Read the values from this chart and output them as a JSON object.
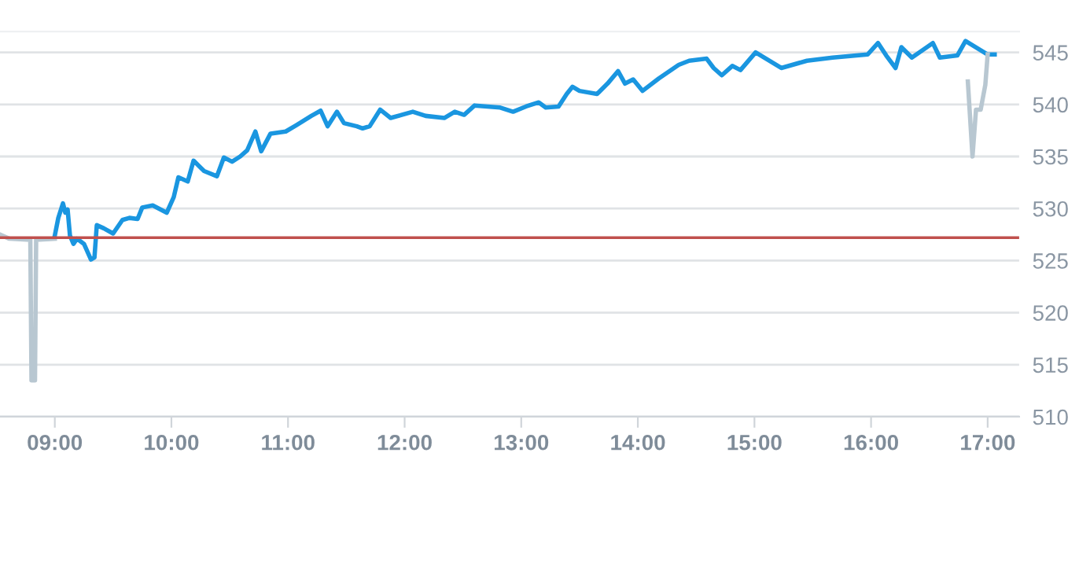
{
  "chart_data": {
    "type": "line",
    "series": [
      {
        "color": "#b8c7d1",
        "x": [
          8.53,
          8.61,
          8.79,
          8.8,
          8.83,
          8.84,
          9.0
        ],
        "values": [
          527.5,
          527.1,
          527.0,
          513.5,
          513.5,
          527.0,
          527.1
        ]
      },
      {
        "color": "#1a96e0",
        "x": [
          9.0,
          9.03,
          9.07,
          9.09,
          9.11,
          9.13,
          9.16,
          9.19,
          9.25,
          9.31,
          9.34,
          9.36,
          9.42,
          9.5,
          9.58,
          9.64,
          9.71,
          9.75,
          9.84,
          9.96,
          10.02,
          10.06,
          10.14,
          10.19,
          10.28,
          10.39,
          10.45,
          10.52,
          10.59,
          10.65,
          10.72,
          10.77,
          10.85,
          10.98,
          11.07,
          11.2,
          11.28,
          11.34,
          11.42,
          11.48,
          11.59,
          11.64,
          11.7,
          11.79,
          11.88,
          12.07,
          12.18,
          12.34,
          12.43,
          12.51,
          12.6,
          12.82,
          12.93,
          13.04,
          13.15,
          13.21,
          13.32,
          13.39,
          13.44,
          13.5,
          13.65,
          13.74,
          13.83,
          13.89,
          13.96,
          14.04,
          14.18,
          14.35,
          14.44,
          14.59,
          14.65,
          14.72,
          14.81,
          14.88,
          15.01,
          15.23,
          15.45,
          15.67,
          15.97,
          16.06,
          16.13,
          16.21,
          16.26,
          16.35,
          16.53,
          16.59,
          16.74,
          16.81,
          17.0,
          17.06
        ],
        "values": [
          527.4,
          529.1,
          530.5,
          529.6,
          529.9,
          527.4,
          526.6,
          527.1,
          526.6,
          525.1,
          525.3,
          528.4,
          528.1,
          527.6,
          528.9,
          529.1,
          529.0,
          530.1,
          530.3,
          529.6,
          531.1,
          533.0,
          532.6,
          534.6,
          533.6,
          533.1,
          534.9,
          534.5,
          535.0,
          535.6,
          537.4,
          535.5,
          537.2,
          537.4,
          538.0,
          538.9,
          539.4,
          537.9,
          539.3,
          538.2,
          537.9,
          537.7,
          537.9,
          539.5,
          538.7,
          539.3,
          538.9,
          538.7,
          539.3,
          539.0,
          539.9,
          539.7,
          539.3,
          539.8,
          540.2,
          539.7,
          539.8,
          541.0,
          541.7,
          541.3,
          541.0,
          542.0,
          543.2,
          542.0,
          542.4,
          541.3,
          542.5,
          543.8,
          544.2,
          544.4,
          543.5,
          542.8,
          543.7,
          543.3,
          545.0,
          543.5,
          544.2,
          544.5,
          544.8,
          545.9,
          544.7,
          543.5,
          545.5,
          544.5,
          545.9,
          544.5,
          544.7,
          546.1,
          544.8,
          544.8
        ]
      },
      {
        "color": "#b8c7d1",
        "x": [
          16.83,
          16.87,
          16.9,
          16.94,
          16.98,
          17.0
        ],
        "values": [
          542.2,
          535.0,
          539.5,
          539.5,
          541.9,
          544.8
        ]
      }
    ],
    "xlim": [
      8.53,
      17.27
    ],
    "ylim": [
      510,
      547
    ],
    "xticks": [
      {
        "value": 9,
        "label": "09:00"
      },
      {
        "value": 10,
        "label": "10:00"
      },
      {
        "value": 11,
        "label": "11:00"
      },
      {
        "value": 12,
        "label": "12:00"
      },
      {
        "value": 13,
        "label": "13:00"
      },
      {
        "value": 14,
        "label": "14:00"
      },
      {
        "value": 15,
        "label": "15:00"
      },
      {
        "value": 16,
        "label": "16:00"
      },
      {
        "value": 17,
        "label": "17:00"
      }
    ],
    "yticks": [
      510,
      515,
      520,
      525,
      530,
      535,
      540,
      545
    ],
    "grid": "y",
    "marker": "none",
    "line_style": "solid",
    "ref_lines": [
      {
        "axis": "y",
        "value": 527.2,
        "color": "#c0504d"
      }
    ]
  }
}
